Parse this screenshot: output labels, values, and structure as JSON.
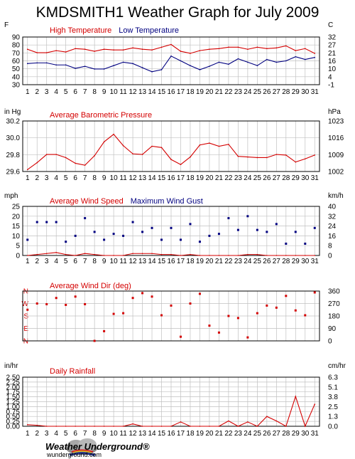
{
  "page": {
    "title": "KMDSMITH1 Weather Graph for July 2009",
    "logo_name": "Weather Underground®",
    "logo_url": "wunderground.com"
  },
  "colors": {
    "red": "#d40000",
    "blue": "#000080",
    "grid": "#c0c0c0",
    "frame": "#000000"
  },
  "days": [
    "1",
    "2",
    "3",
    "4",
    "5",
    "6",
    "7",
    "8",
    "9",
    "10",
    "11",
    "12",
    "13",
    "14",
    "15",
    "16",
    "17",
    "18",
    "19",
    "20",
    "21",
    "22",
    "23",
    "24",
    "25",
    "26",
    "27",
    "28",
    "29",
    "30",
    "31"
  ],
  "chart_data": [
    {
      "type": "line",
      "title_parts": [
        "High Temperature",
        "Low Temperature"
      ],
      "left_unit": "F",
      "right_unit": "C",
      "ylim": [
        30,
        100
      ],
      "left_ticks": [
        "90",
        "80",
        "70",
        "60",
        "50",
        "40",
        "30"
      ],
      "right_ticks": [
        "32",
        "27",
        "21",
        "16",
        "10",
        "4",
        "-1"
      ],
      "grid": true,
      "series": [
        {
          "name": "High Temperature",
          "color": "#d40000",
          "marker": "line",
          "values": [
            82,
            77,
            77,
            80,
            78,
            83,
            82,
            79,
            82,
            81,
            81,
            84,
            82,
            81,
            85,
            89,
            79,
            76,
            80,
            82,
            83,
            85,
            85,
            82,
            85,
            83,
            84,
            87,
            80,
            83,
            76
          ]
        },
        {
          "name": "Low Temperature",
          "color": "#000080",
          "marker": "line",
          "values": [
            61,
            62,
            62,
            59,
            59,
            54,
            57,
            53,
            53,
            58,
            63,
            61,
            55,
            49,
            52,
            72,
            65,
            58,
            52,
            57,
            63,
            60,
            68,
            63,
            58,
            67,
            63,
            65,
            71,
            67,
            70
          ]
        }
      ]
    },
    {
      "type": "line",
      "title_parts": [
        "Average Barometric Pressure"
      ],
      "left_unit": "in Hg",
      "right_unit": "hPa",
      "ylim": [
        29.6,
        30.4
      ],
      "left_ticks": [
        "30.2",
        "30.0",
        "29.8",
        "29.6"
      ],
      "right_ticks": [
        "1023",
        "1016",
        "1009",
        "1002"
      ],
      "grid": true,
      "series": [
        {
          "name": "Average Barometric Pressure",
          "color": "#d40000",
          "marker": "line",
          "values": [
            29.63,
            29.74,
            29.87,
            29.87,
            29.82,
            29.73,
            29.7,
            29.85,
            30.07,
            30.19,
            30.01,
            29.88,
            29.87,
            30.0,
            29.98,
            29.79,
            29.71,
            29.83,
            30.02,
            30.05,
            30.0,
            30.03,
            29.84,
            29.83,
            29.82,
            29.82,
            29.87,
            29.86,
            29.75,
            29.8,
            29.86
          ]
        }
      ]
    },
    {
      "type": "scatter",
      "title_parts": [
        "Average Wind Speed",
        "Maximum Wind Gust"
      ],
      "left_unit": "mph",
      "right_unit": "km/h",
      "ylim": [
        0,
        25
      ],
      "left_ticks": [
        "25",
        "20",
        "15",
        "10",
        "5",
        "0"
      ],
      "right_ticks": [
        "40",
        "32",
        "24",
        "16",
        "8",
        "0"
      ],
      "grid": true,
      "series": [
        {
          "name": "Average Wind Speed",
          "color": "#d40000",
          "marker": "line",
          "values": [
            0,
            0.5,
            1,
            1.5,
            0.5,
            0,
            1,
            0.5,
            0,
            0,
            0,
            1,
            1,
            1,
            0.5,
            0.5,
            0,
            0.5,
            0,
            0,
            0,
            0,
            0,
            0.5,
            0.5,
            0,
            0,
            0,
            0,
            0,
            0
          ]
        },
        {
          "name": "Maximum Wind Gust",
          "color": "#000080",
          "marker": "dot",
          "values": [
            8,
            17,
            17,
            17,
            7,
            10,
            19,
            12,
            8,
            11,
            10,
            17,
            12,
            14,
            8,
            14,
            8,
            16,
            7,
            10,
            11,
            19,
            13,
            20,
            13,
            12,
            16,
            6,
            12,
            6,
            14
          ]
        }
      ]
    },
    {
      "type": "scatter",
      "title_parts": [
        "Average Wind Dir (deg)"
      ],
      "left_unit": "",
      "right_unit": "",
      "ylim": [
        0,
        360
      ],
      "left_ticks": [
        "N",
        "W",
        "S",
        "E",
        "N"
      ],
      "right_ticks": [
        "360",
        "270",
        "180",
        "90",
        "0"
      ],
      "grid": true,
      "series": [
        {
          "name": "Average Wind Dir (deg)",
          "color": "#d40000",
          "marker": "dot",
          "values": [
            225,
            270,
            265,
            310,
            260,
            320,
            265,
            0,
            70,
            195,
            200,
            310,
            345,
            320,
            185,
            255,
            30,
            270,
            340,
            110,
            60,
            180,
            165,
            25,
            200,
            255,
            240,
            325,
            220,
            185,
            350
          ]
        }
      ]
    },
    {
      "type": "line",
      "title_parts": [
        "Daily Rainfall"
      ],
      "left_unit": "in/hr",
      "right_unit": "cm/hr",
      "ylim": [
        0,
        2.5
      ],
      "left_ticks": [
        "2.50",
        "2.25",
        "2.00",
        "1.75",
        "1.50",
        "1.25",
        "1.00",
        "0.75",
        "0.50",
        "0.25",
        "0.00"
      ],
      "right_ticks": [
        "6.3",
        "5.1",
        "3.8",
        "2.5",
        "1.3",
        "0.0"
      ],
      "grid": true,
      "series": [
        {
          "name": "Daily Rainfall",
          "color": "#d40000",
          "marker": "line",
          "values": [
            0.08,
            0.05,
            0,
            0,
            0,
            0,
            0,
            0,
            0,
            0,
            0,
            0.12,
            0,
            0,
            0,
            0,
            0.22,
            0,
            0,
            0,
            0,
            0.27,
            0,
            0.22,
            0,
            0.5,
            0.27,
            0,
            1.52,
            0,
            1.12
          ]
        }
      ]
    }
  ]
}
